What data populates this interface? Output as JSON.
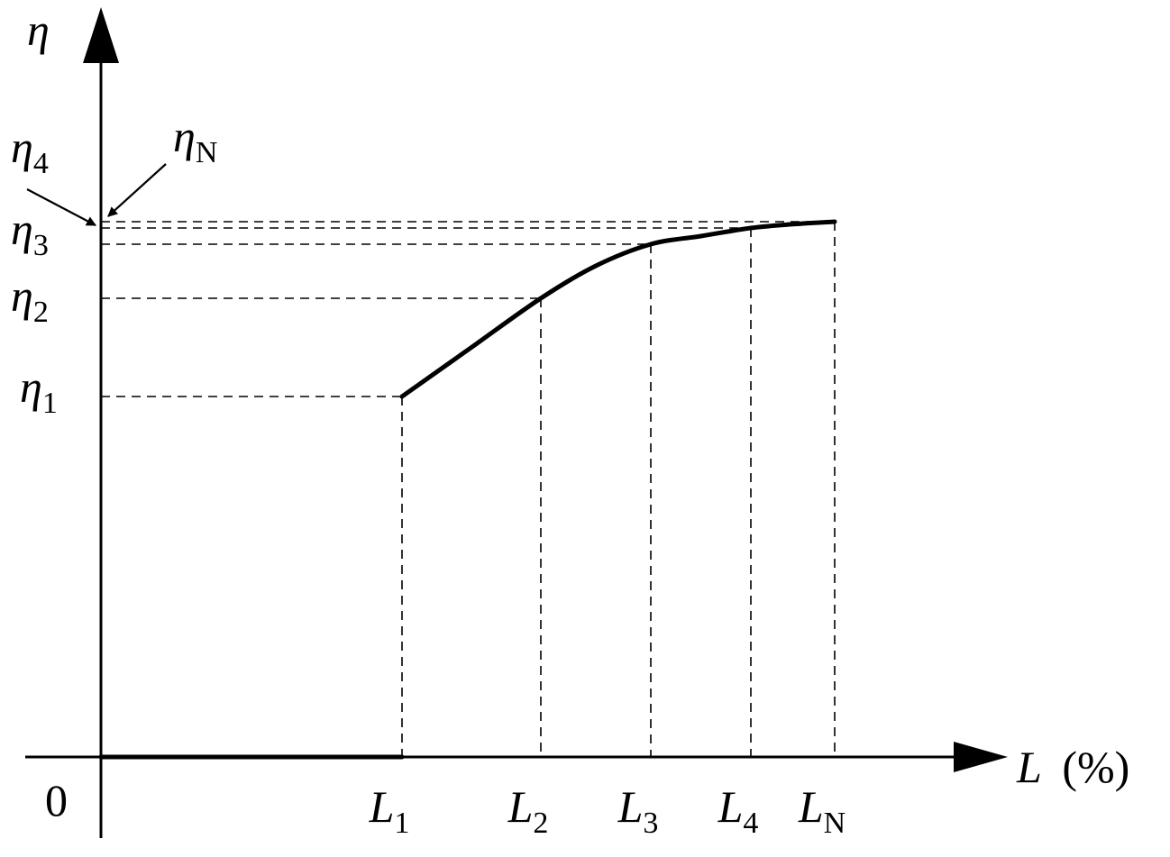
{
  "chart_data": {
    "type": "line",
    "x_axis": {
      "symbol": "L",
      "unit": "(%)"
    },
    "y_axis": {
      "symbol": "η"
    },
    "origin_label": "0",
    "x_levels": [
      {
        "name": "L",
        "sub": "1",
        "x": 1
      },
      {
        "name": "L",
        "sub": "2",
        "x": 2
      },
      {
        "name": "L",
        "sub": "3",
        "x": 3
      },
      {
        "name": "L",
        "sub": "4",
        "x": 4
      },
      {
        "name": "L",
        "sub": "N",
        "x": 5
      }
    ],
    "y_levels": [
      {
        "name": "η",
        "sub": "1",
        "y": 1
      },
      {
        "name": "η",
        "sub": "2",
        "y": 2
      },
      {
        "name": "η",
        "sub": "3",
        "y": 3
      },
      {
        "name": "η",
        "sub": "4",
        "y": 4
      },
      {
        "name": "η",
        "sub": "N",
        "y": 5
      }
    ],
    "series": [
      {
        "points": [
          [
            0,
            0
          ],
          [
            1,
            0
          ],
          [
            1,
            1
          ],
          [
            1.5,
            1.5
          ],
          [
            2,
            2
          ],
          [
            2.5,
            2.6
          ],
          [
            3,
            3
          ],
          [
            3.5,
            3.5
          ],
          [
            4,
            4
          ],
          [
            4.5,
            4.6
          ],
          [
            5,
            5
          ]
        ]
      }
    ],
    "grid": false,
    "legend": "none"
  }
}
